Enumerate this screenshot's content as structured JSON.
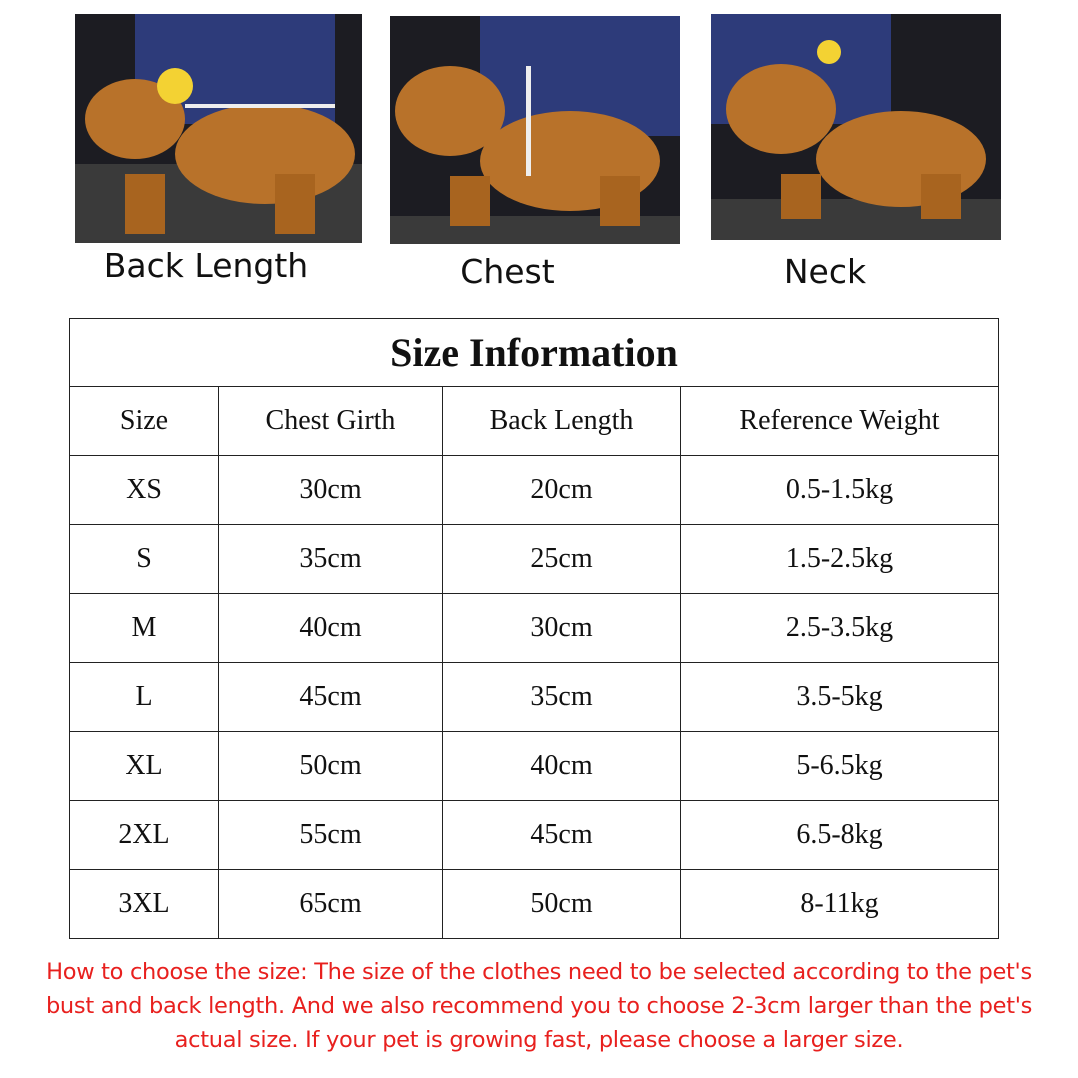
{
  "photos": [
    {
      "label": "Back Length"
    },
    {
      "label": "Chest"
    },
    {
      "label": "Neck"
    }
  ],
  "table": {
    "title": "Size Information",
    "headers": [
      "Size",
      "Chest Girth",
      "Back Length",
      "Reference Weight"
    ],
    "rows": [
      [
        "XS",
        "30cm",
        "20cm",
        "0.5-1.5kg"
      ],
      [
        "S",
        "35cm",
        "25cm",
        "1.5-2.5kg"
      ],
      [
        "M",
        "40cm",
        "30cm",
        "2.5-3.5kg"
      ],
      [
        "L",
        "45cm",
        "35cm",
        "3.5-5kg"
      ],
      [
        "XL",
        "50cm",
        "40cm",
        "5-6.5kg"
      ],
      [
        "2XL",
        "55cm",
        "45cm",
        "6.5-8kg"
      ],
      [
        "3XL",
        "65cm",
        "50cm",
        "8-11kg"
      ]
    ]
  },
  "note": "How to choose the size: The size of the clothes need to be selected according to the pet's bust and back length. And we also recommend you to choose 2-3cm larger than the pet's actual size. If your pet is growing fast, please choose a larger size.",
  "colors": {
    "note": "#e8201e",
    "dog": "#b8722a"
  }
}
